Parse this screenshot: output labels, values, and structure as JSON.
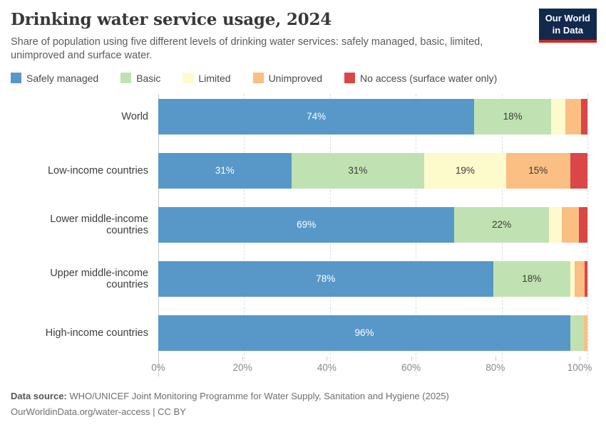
{
  "header": {
    "title": "Drinking water service usage, 2024",
    "subtitle": "Share of population using five different levels of drinking water services: safely managed, basic, limited,\nunimproved and surface water."
  },
  "logo": {
    "line1": "Our World",
    "line2": "in Data",
    "bg_color": "#12294e",
    "accent_color": "#d02a20"
  },
  "chart_data": {
    "type": "bar",
    "stacked": true,
    "orientation": "horizontal",
    "unit": "%",
    "xlim": [
      0,
      100
    ],
    "grid": "dashed-vertical",
    "legend_position": "top",
    "categories": [
      "World",
      "Low-income countries",
      "Lower middle-income countries",
      "Upper middle-income countries",
      "High-income countries"
    ],
    "series": [
      {
        "name": "Safely managed",
        "color": "#5798c9",
        "label_color": "#ffffff",
        "values": [
          74,
          31,
          69,
          78,
          96
        ],
        "labels": [
          "74%",
          "31%",
          "69%",
          "78%",
          "96%"
        ]
      },
      {
        "name": "Basic",
        "color": "#c0e2b2",
        "label_color": "#3a3a3a",
        "values": [
          18,
          31,
          22,
          18,
          3.2
        ],
        "labels": [
          "18%",
          "31%",
          "22%",
          "18%",
          ""
        ]
      },
      {
        "name": "Limited",
        "color": "#fdfacc",
        "label_color": "#3a3a3a",
        "values": [
          3.3,
          19,
          3,
          1,
          0
        ],
        "labels": [
          "",
          "19%",
          "",
          "",
          ""
        ]
      },
      {
        "name": "Unimproved",
        "color": "#fbbe83",
        "label_color": "#3a3a3a",
        "values": [
          3.7,
          15,
          4,
          2.3,
          0.8
        ],
        "labels": [
          "",
          "15%",
          "",
          "",
          ""
        ]
      },
      {
        "name": "No access (surface water only)",
        "color": "#db4646",
        "label_color": "#3a3a3a",
        "values": [
          1.5,
          4,
          2,
          0.7,
          0
        ],
        "labels": [
          "",
          "",
          "",
          "",
          ""
        ]
      }
    ],
    "xticks": [
      "0%",
      "20%",
      "40%",
      "60%",
      "80%",
      "100%"
    ]
  },
  "footer": {
    "source_label": "Data source:",
    "source_text": " WHO/UNICEF Joint Monitoring Programme for Water Supply, Sanitation and Hygiene (2025)",
    "url": "OurWorldinData.org/water-access",
    "license": " | CC BY"
  }
}
